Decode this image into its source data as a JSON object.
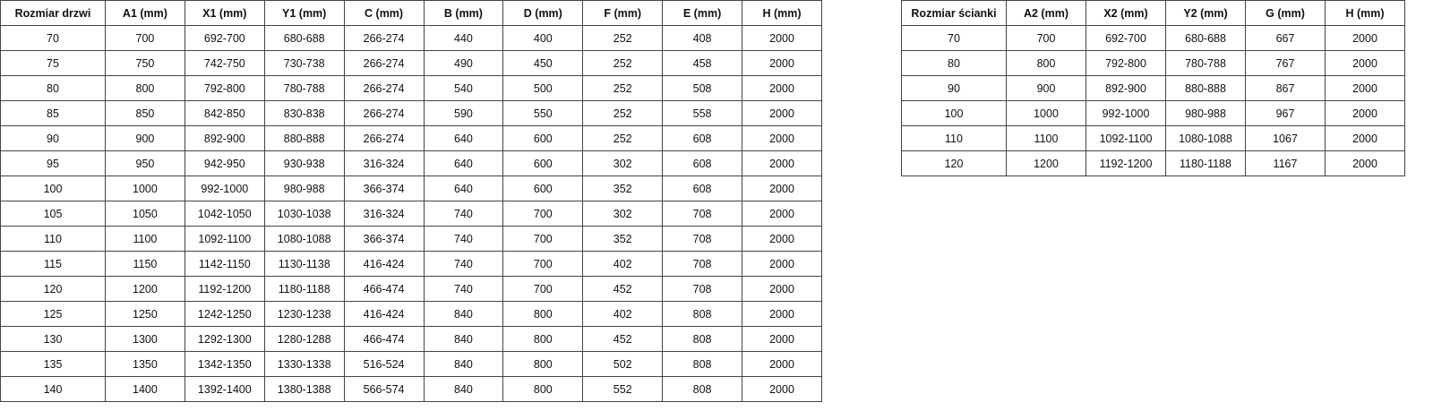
{
  "door_table": {
    "headers": [
      "Rozmiar drzwi",
      "A1 (mm)",
      "X1 (mm)",
      "Y1 (mm)",
      "C (mm)",
      "B (mm)",
      "D (mm)",
      "F (mm)",
      "E (mm)",
      "H (mm)"
    ],
    "rows": [
      [
        "70",
        "700",
        "692-700",
        "680-688",
        "266-274",
        "440",
        "400",
        "252",
        "408",
        "2000"
      ],
      [
        "75",
        "750",
        "742-750",
        "730-738",
        "266-274",
        "490",
        "450",
        "252",
        "458",
        "2000"
      ],
      [
        "80",
        "800",
        "792-800",
        "780-788",
        "266-274",
        "540",
        "500",
        "252",
        "508",
        "2000"
      ],
      [
        "85",
        "850",
        "842-850",
        "830-838",
        "266-274",
        "590",
        "550",
        "252",
        "558",
        "2000"
      ],
      [
        "90",
        "900",
        "892-900",
        "880-888",
        "266-274",
        "640",
        "600",
        "252",
        "608",
        "2000"
      ],
      [
        "95",
        "950",
        "942-950",
        "930-938",
        "316-324",
        "640",
        "600",
        "302",
        "608",
        "2000"
      ],
      [
        "100",
        "1000",
        "992-1000",
        "980-988",
        "366-374",
        "640",
        "600",
        "352",
        "608",
        "2000"
      ],
      [
        "105",
        "1050",
        "1042-1050",
        "1030-1038",
        "316-324",
        "740",
        "700",
        "302",
        "708",
        "2000"
      ],
      [
        "110",
        "1100",
        "1092-1100",
        "1080-1088",
        "366-374",
        "740",
        "700",
        "352",
        "708",
        "2000"
      ],
      [
        "115",
        "1150",
        "1142-1150",
        "1130-1138",
        "416-424",
        "740",
        "700",
        "402",
        "708",
        "2000"
      ],
      [
        "120",
        "1200",
        "1192-1200",
        "1180-1188",
        "466-474",
        "740",
        "700",
        "452",
        "708",
        "2000"
      ],
      [
        "125",
        "1250",
        "1242-1250",
        "1230-1238",
        "416-424",
        "840",
        "800",
        "402",
        "808",
        "2000"
      ],
      [
        "130",
        "1300",
        "1292-1300",
        "1280-1288",
        "466-474",
        "840",
        "800",
        "452",
        "808",
        "2000"
      ],
      [
        "135",
        "1350",
        "1342-1350",
        "1330-1338",
        "516-524",
        "840",
        "800",
        "502",
        "808",
        "2000"
      ],
      [
        "140",
        "1400",
        "1392-1400",
        "1380-1388",
        "566-574",
        "840",
        "800",
        "552",
        "808",
        "2000"
      ]
    ]
  },
  "wall_table": {
    "headers": [
      "Rozmiar ścianki",
      "A2 (mm)",
      "X2 (mm)",
      "Y2 (mm)",
      "G (mm)",
      "H (mm)"
    ],
    "rows": [
      [
        "70",
        "700",
        "692-700",
        "680-688",
        "667",
        "2000"
      ],
      [
        "80",
        "800",
        "792-800",
        "780-788",
        "767",
        "2000"
      ],
      [
        "90",
        "900",
        "892-900",
        "880-888",
        "867",
        "2000"
      ],
      [
        "100",
        "1000",
        "992-1000",
        "980-988",
        "967",
        "2000"
      ],
      [
        "110",
        "1100",
        "1092-1100",
        "1080-1088",
        "1067",
        "2000"
      ],
      [
        "120",
        "1200",
        "1192-1200",
        "1180-1188",
        "1167",
        "2000"
      ]
    ]
  }
}
